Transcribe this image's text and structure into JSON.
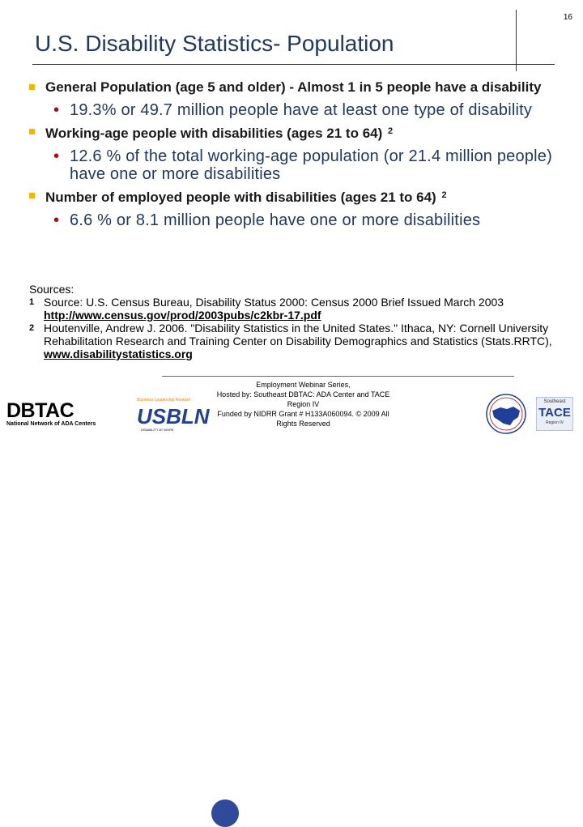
{
  "page_number": "16",
  "title": "U.S. Disability Statistics- Population",
  "bullets": [
    {
      "text": "General Population (age 5 and older) - Almost 1 in 5 people have a disability",
      "sup": "",
      "sub": "19.3% or 49.7 million people have at least one type of disability"
    },
    {
      "text": "Working-age people with disabilities (ages 21 to 64)",
      "sup": "2",
      "sub": "12.6 % of the total working-age population (or 21.4 million people) have one or more disabilities"
    },
    {
      "text": "Number of employed people with disabilities (ages 21 to 64)",
      "sup": "2",
      "sub": "6.6 % or 8.1 million people have one or more disabilities"
    }
  ],
  "sources": {
    "heading": "Sources:",
    "items": [
      {
        "num": "1",
        "text": "Source: U.S. Census Bureau, Disability Status 2000: Census 2000 Brief Issued March 2003",
        "link": "http://www.census.gov/prod/2003pubs/c2kbr-17.pdf"
      },
      {
        "num": "2",
        "text": "Houtenville, Andrew J. 2006. \"Disability Statistics in the United States.\" Ithaca, NY: Cornell University Rehabilitation Research and Training Center on Disability Demographics and Statistics (Stats.RRTC),",
        "link": "www.disabilitystatistics.org"
      }
    ]
  },
  "footer": {
    "line1": "Employment Webinar Series,",
    "line2": "Hosted by: Southeast DBTAC: ADA Center and TACE Region IV",
    "line3": "Funded by NIDRR Grant # H133A060094. © 2009 All Rights Reserved"
  },
  "logos": {
    "dbtac_word": "DBTAC",
    "dbtac_tag": "National Network of ADA Centers",
    "usbln_tag": "Business Leadership Network",
    "usbln_word": "USBLN",
    "usbln_sub": "DISABILITY AT WORK",
    "tace_top": "Southeast",
    "tace_word": "TACE",
    "tace_bottom": "Region IV"
  },
  "colors": {
    "title": "#1f3864",
    "bullet_square": "#f2b700",
    "sub_bullet_dot": "#c00000",
    "sub_text": "#1f3864"
  }
}
